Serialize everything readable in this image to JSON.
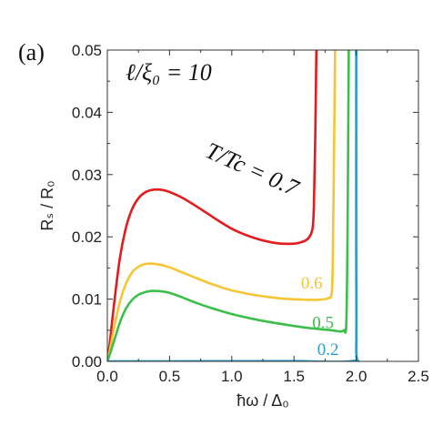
{
  "chart_data": {
    "type": "line",
    "panel_label": "(a)",
    "annotation": "ℓ/ξ₀ = 10",
    "xlabel": "ħω / Δ₀",
    "ylabel": "Rₛ / R₀",
    "xlim": [
      0,
      2.5
    ],
    "ylim": [
      0,
      0.05
    ],
    "xticks": [
      "0.0",
      "0.5",
      "1.0",
      "1.5",
      "2.0",
      "2.5"
    ],
    "yticks": [
      "0.00",
      "0.01",
      "0.02",
      "0.03",
      "0.04",
      "0.05"
    ],
    "grid": false,
    "series": [
      {
        "name": "T/Tc = 0.7",
        "color": "#e41a1c",
        "label_x": 1.5,
        "label_y": 0.0265,
        "x": [
          0,
          0.02,
          0.05,
          0.1,
          0.15,
          0.2,
          0.25,
          0.3,
          0.35,
          0.4,
          0.45,
          0.5,
          0.6,
          0.7,
          0.8,
          0.9,
          1.0,
          1.1,
          1.2,
          1.3,
          1.4,
          1.5,
          1.55,
          1.6,
          1.63,
          1.65,
          1.66,
          1.67,
          1.68
        ],
        "y": [
          0,
          0.003,
          0.0085,
          0.0165,
          0.0215,
          0.0245,
          0.0262,
          0.0271,
          0.0275,
          0.0276,
          0.0275,
          0.0272,
          0.0263,
          0.0251,
          0.0238,
          0.0225,
          0.0213,
          0.0204,
          0.0197,
          0.0192,
          0.0189,
          0.0189,
          0.0191,
          0.0195,
          0.0202,
          0.0215,
          0.025,
          0.035,
          0.05
        ]
      },
      {
        "name": "0.6",
        "color": "#f5c533",
        "label_x": 1.73,
        "label_y": 0.0117,
        "x": [
          0,
          0.02,
          0.05,
          0.1,
          0.15,
          0.2,
          0.25,
          0.3,
          0.35,
          0.4,
          0.45,
          0.5,
          0.6,
          0.7,
          0.8,
          0.9,
          1.0,
          1.2,
          1.4,
          1.6,
          1.7,
          1.75,
          1.78,
          1.8,
          1.81,
          1.82,
          1.83
        ],
        "y": [
          0,
          0.0018,
          0.005,
          0.0095,
          0.0125,
          0.0143,
          0.0152,
          0.0156,
          0.0157,
          0.0156,
          0.0154,
          0.0151,
          0.0143,
          0.0135,
          0.0127,
          0.012,
          0.0114,
          0.0106,
          0.0101,
          0.0099,
          0.0099,
          0.01,
          0.0102,
          0.0106,
          0.014,
          0.03,
          0.05
        ]
      },
      {
        "name": "0.5",
        "color": "#3cbf4a",
        "label_x": 1.82,
        "label_y": 0.0053,
        "x": [
          0,
          0.02,
          0.05,
          0.1,
          0.15,
          0.2,
          0.25,
          0.3,
          0.35,
          0.4,
          0.45,
          0.5,
          0.6,
          0.7,
          0.8,
          1.0,
          1.2,
          1.4,
          1.6,
          1.8,
          1.87,
          1.9,
          1.92,
          1.93,
          1.94
        ],
        "y": [
          0,
          0.0011,
          0.003,
          0.0062,
          0.0085,
          0.0099,
          0.0107,
          0.0111,
          0.0113,
          0.0113,
          0.0112,
          0.011,
          0.0103,
          0.0095,
          0.0088,
          0.0076,
          0.0067,
          0.006,
          0.0054,
          0.005,
          0.0048,
          0.005,
          0.006,
          0.02,
          0.05
        ]
      },
      {
        "name": "0.2",
        "color": "#2a9cc8",
        "label_x": 1.86,
        "label_y": 0.001,
        "x": [
          0,
          0.5,
          1.0,
          1.5,
          1.98,
          2.0,
          2.0,
          2.0
        ],
        "y": [
          0,
          2e-05,
          3e-05,
          4e-05,
          8e-05,
          0.002,
          0.02,
          0.05
        ]
      }
    ]
  }
}
